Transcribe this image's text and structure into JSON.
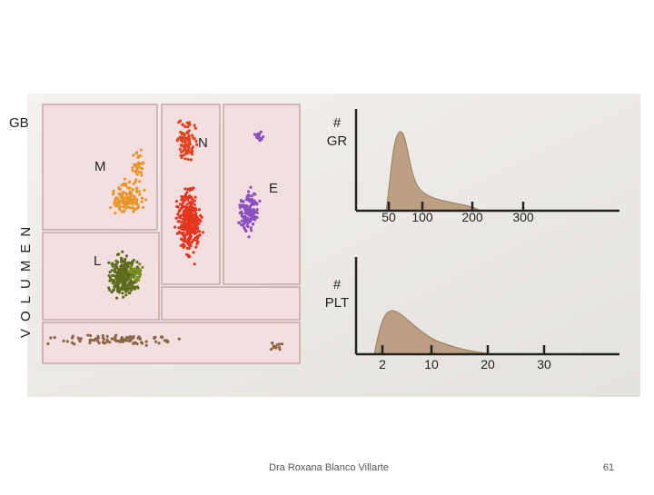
{
  "scatter_panel": {
    "axis_label": "GB",
    "y_axis_label": "VOLUMEN",
    "clusters": [
      "M",
      "N",
      "E",
      "L"
    ]
  },
  "histograms": [
    {
      "label_lines": [
        "#",
        "GR"
      ],
      "tick_labels": [
        "50",
        "100",
        "200",
        "300"
      ]
    },
    {
      "label_lines": [
        "#",
        "PLT"
      ],
      "tick_labels": [
        "2",
        "10",
        "20",
        "30"
      ]
    }
  ],
  "footer": {
    "author": "Dra Roxana Blanco Villarte",
    "page": "61"
  }
}
